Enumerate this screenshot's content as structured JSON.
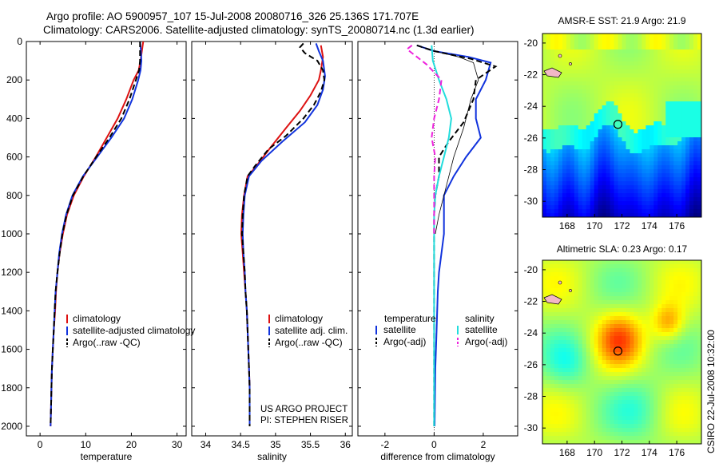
{
  "header": {
    "line1": "Argo profile: AO 5900957_107 15-Jul-2008 20080716_326 25.136S 171.707E",
    "line2": "Climatology: CARS2006. Satellite-adjusted climatology: synTS_20080714.nc (1.3d earlier)"
  },
  "footer_vertical": "CSIRO 22-Jul-2008 10:32:00",
  "colors": {
    "climatology": "#dd1111",
    "satellite": "#1133dd",
    "argo": "#000000",
    "salinity_satellite": "#22dddd",
    "salinity_argo": "#ee22dd"
  },
  "chart_data": [
    {
      "type": "line",
      "id": "temperature",
      "xlabel": "temperature",
      "ylabel": "",
      "xlim": [
        -3,
        32
      ],
      "ylim": [
        2050,
        0
      ],
      "xticks": [
        0,
        10,
        20,
        30
      ],
      "yticks": [
        0,
        200,
        400,
        600,
        800,
        1000,
        1200,
        1400,
        1600,
        1800,
        2000
      ],
      "legend": {
        "placement": "lower-right",
        "entries": [
          "climatology",
          "satellite-adjusted climatology",
          "Argo(..raw -QC)"
        ]
      },
      "series": [
        {
          "name": "climatology",
          "color": "#dd1111",
          "style": "solid",
          "points": [
            [
              22.6,
              0
            ],
            [
              22.3,
              50
            ],
            [
              22.0,
              100
            ],
            [
              21.6,
              150
            ],
            [
              20.5,
              200
            ],
            [
              18.9,
              300
            ],
            [
              17.0,
              400
            ],
            [
              14.6,
              500
            ],
            [
              12.2,
              600
            ],
            [
              9.6,
              700
            ],
            [
              7.4,
              800
            ],
            [
              5.9,
              900
            ],
            [
              5.0,
              1000
            ],
            [
              4.3,
              1100
            ],
            [
              3.8,
              1200
            ],
            [
              3.5,
              1300
            ],
            [
              3.3,
              1400
            ],
            [
              3.0,
              1500
            ],
            [
              2.8,
              1600
            ],
            [
              2.6,
              1700
            ],
            [
              2.5,
              1800
            ],
            [
              2.4,
              1900
            ],
            [
              2.3,
              2000
            ]
          ]
        },
        {
          "name": "satellite-adjusted climatology",
          "color": "#1133dd",
          "style": "solid",
          "points": [
            [
              21.9,
              0
            ],
            [
              22.1,
              50
            ],
            [
              22.2,
              100
            ],
            [
              22.0,
              150
            ],
            [
              21.5,
              200
            ],
            [
              20.2,
              300
            ],
            [
              18.4,
              400
            ],
            [
              15.6,
              500
            ],
            [
              12.5,
              600
            ],
            [
              9.4,
              700
            ],
            [
              7.1,
              800
            ],
            [
              5.7,
              900
            ],
            [
              4.8,
              1000
            ],
            [
              4.2,
              1100
            ],
            [
              3.8,
              1200
            ],
            [
              3.4,
              1300
            ],
            [
              3.2,
              1400
            ],
            [
              3.0,
              1500
            ],
            [
              2.8,
              1600
            ],
            [
              2.6,
              1700
            ],
            [
              2.5,
              1800
            ],
            [
              2.4,
              1900
            ],
            [
              2.3,
              2000
            ]
          ]
        },
        {
          "name": "Argo(..raw -QC)",
          "color": "#000000",
          "style": "dashed",
          "points": [
            [
              21.9,
              0
            ],
            [
              21.9,
              50
            ],
            [
              21.9,
              100
            ],
            [
              21.7,
              150
            ],
            [
              21.0,
              200
            ],
            [
              19.6,
              300
            ],
            [
              17.8,
              400
            ],
            [
              15.2,
              500
            ],
            [
              12.3,
              600
            ],
            [
              9.5,
              700
            ],
            [
              7.2,
              800
            ],
            [
              5.8,
              900
            ],
            [
              4.9,
              1000
            ],
            [
              4.3,
              1100
            ],
            [
              3.8,
              1200
            ],
            [
              3.4,
              1300
            ],
            [
              3.2,
              1400
            ],
            [
              3.0,
              1500
            ],
            [
              2.8,
              1600
            ],
            [
              2.6,
              1700
            ],
            [
              2.5,
              1800
            ],
            [
              2.4,
              1900
            ],
            [
              2.3,
              2000
            ]
          ]
        }
      ]
    },
    {
      "type": "line",
      "id": "salinity",
      "xlabel": "salinity",
      "ylabel": "",
      "xlim": [
        33.8,
        36.1
      ],
      "ylim": [
        2050,
        0
      ],
      "xticks": [
        34,
        34.5,
        35,
        35.5,
        36
      ],
      "yticks": [
        0,
        200,
        400,
        600,
        800,
        1000,
        1200,
        1400,
        1600,
        1800,
        2000
      ],
      "legend": {
        "placement": "lower-right",
        "entries": [
          "climatology",
          "satellite adj. clim.",
          "Argo(..raw -QC)"
        ]
      },
      "annotation": [
        "US ARGO PROJECT",
        "PI: STEPHEN RISER"
      ],
      "series": [
        {
          "name": "climatology",
          "color": "#dd1111",
          "style": "solid",
          "points": [
            [
              35.65,
              20
            ],
            [
              35.68,
              80
            ],
            [
              35.65,
              150
            ],
            [
              35.62,
              200
            ],
            [
              35.5,
              280
            ],
            [
              35.35,
              360
            ],
            [
              35.15,
              450
            ],
            [
              34.93,
              550
            ],
            [
              34.72,
              650
            ],
            [
              34.6,
              700
            ],
            [
              34.55,
              800
            ],
            [
              34.52,
              900
            ],
            [
              34.51,
              1000
            ],
            [
              34.53,
              1100
            ],
            [
              34.55,
              1200
            ],
            [
              34.57,
              1300
            ],
            [
              34.59,
              1400
            ],
            [
              34.6,
              1500
            ],
            [
              34.61,
              1600
            ],
            [
              34.62,
              1700
            ],
            [
              34.63,
              1800
            ],
            [
              34.63,
              1900
            ],
            [
              34.63,
              2000
            ]
          ]
        },
        {
          "name": "satellite adj. clim.",
          "color": "#1133dd",
          "style": "solid",
          "points": [
            [
              35.58,
              10
            ],
            [
              35.62,
              50
            ],
            [
              35.68,
              100
            ],
            [
              35.71,
              180
            ],
            [
              35.68,
              250
            ],
            [
              35.6,
              330
            ],
            [
              35.42,
              420
            ],
            [
              35.1,
              520
            ],
            [
              34.8,
              620
            ],
            [
              34.62,
              700
            ],
            [
              34.56,
              800
            ],
            [
              34.54,
              900
            ],
            [
              34.53,
              1000
            ],
            [
              34.54,
              1100
            ],
            [
              34.56,
              1200
            ],
            [
              34.57,
              1300
            ],
            [
              34.59,
              1400
            ],
            [
              34.6,
              1500
            ],
            [
              34.61,
              1600
            ],
            [
              34.62,
              1700
            ],
            [
              34.63,
              1800
            ],
            [
              34.63,
              1900
            ],
            [
              34.63,
              2000
            ]
          ]
        },
        {
          "name": "Argo(..raw -QC)",
          "color": "#000000",
          "style": "dashed",
          "points": [
            [
              35.4,
              10
            ],
            [
              35.35,
              30
            ],
            [
              35.42,
              60
            ],
            [
              35.6,
              100
            ],
            [
              35.68,
              150
            ],
            [
              35.7,
              200
            ],
            [
              35.65,
              260
            ],
            [
              35.55,
              330
            ],
            [
              35.4,
              400
            ],
            [
              35.15,
              490
            ],
            [
              34.9,
              560
            ],
            [
              34.7,
              650
            ],
            [
              34.6,
              700
            ],
            [
              34.55,
              800
            ],
            [
              34.53,
              900
            ],
            [
              34.52,
              1000
            ],
            [
              34.54,
              1100
            ],
            [
              34.56,
              1200
            ],
            [
              34.57,
              1300
            ],
            [
              34.59,
              1400
            ],
            [
              34.6,
              1500
            ],
            [
              34.61,
              1600
            ],
            [
              34.62,
              1700
            ],
            [
              34.63,
              1800
            ],
            [
              34.63,
              1900
            ],
            [
              34.63,
              2000
            ]
          ]
        }
      ]
    },
    {
      "type": "line",
      "id": "difference",
      "xlabel": "difference from climatology",
      "ylabel": "",
      "xlim": [
        -3.1,
        3.4
      ],
      "ylim": [
        2050,
        0
      ],
      "xticks": [
        -2,
        0,
        2
      ],
      "yticks": [
        0,
        200,
        400,
        600,
        800,
        1000,
        1200,
        1400,
        1600,
        1800,
        2000
      ],
      "legend": {
        "placement": "lower-right",
        "headers": [
          "temperature",
          "salinity"
        ],
        "entries": [
          "satellite",
          "Argo(-adj)",
          "satellite",
          "Argo(-adj)"
        ]
      },
      "series": [
        {
          "name": "temperature satellite",
          "color": "#1133dd",
          "style": "solid",
          "points": [
            [
              -0.7,
              20
            ],
            [
              0.0,
              50
            ],
            [
              1.4,
              80
            ],
            [
              2.3,
              110
            ],
            [
              2.1,
              200
            ],
            [
              1.7,
              300
            ],
            [
              1.7,
              400
            ],
            [
              1.9,
              500
            ],
            [
              1.3,
              600
            ],
            [
              0.8,
              700
            ],
            [
              0.4,
              800
            ],
            [
              0.4,
              900
            ],
            [
              0.4,
              1000
            ],
            [
              0.3,
              1100
            ],
            [
              0.2,
              1200
            ],
            [
              0.15,
              1300
            ],
            [
              0.1,
              1500
            ],
            [
              0.05,
              1700
            ],
            [
              0.03,
              1900
            ],
            [
              0.02,
              2000
            ]
          ]
        },
        {
          "name": "temperature thin",
          "color": "#000000",
          "style": "thin",
          "points": [
            [
              -0.7,
              20
            ],
            [
              0.0,
              50
            ],
            [
              1.0,
              80
            ],
            [
              1.6,
              110
            ],
            [
              1.8,
              200
            ],
            [
              1.5,
              300
            ],
            [
              1.2,
              450
            ],
            [
              0.8,
              600
            ],
            [
              0.5,
              750
            ],
            [
              0.2,
              900
            ],
            [
              0.05,
              1000
            ]
          ]
        },
        {
          "name": "temperature Argo(-adj)",
          "color": "#000000",
          "style": "dashed",
          "points": [
            [
              -0.7,
              20
            ],
            [
              0.0,
              50
            ],
            [
              1.5,
              90
            ],
            [
              2.5,
              130
            ],
            [
              1.7,
              200
            ],
            [
              1.6,
              300
            ],
            [
              1.2,
              420
            ],
            [
              0.6,
              520
            ],
            [
              0.2,
              600
            ],
            [
              0.2,
              700
            ],
            [
              0.05,
              800
            ],
            [
              0.0,
              900
            ],
            [
              0.0,
              1000
            ],
            [
              0.0,
              1200
            ],
            [
              0.0,
              1500
            ],
            [
              0.0,
              2000
            ]
          ]
        },
        {
          "name": "salinity satellite",
          "color": "#22dddd",
          "style": "solid",
          "points": [
            [
              -0.1,
              20
            ],
            [
              -0.05,
              100
            ],
            [
              0.2,
              200
            ],
            [
              0.5,
              300
            ],
            [
              0.7,
              400
            ],
            [
              0.6,
              500
            ],
            [
              0.4,
              600
            ],
            [
              0.2,
              700
            ],
            [
              0.05,
              800
            ],
            [
              0.0,
              900
            ],
            [
              0.0,
              1000
            ],
            [
              0.0,
              1200
            ],
            [
              0.0,
              1500
            ],
            [
              0.0,
              2000
            ]
          ]
        },
        {
          "name": "salinity Argo(-adj)",
          "color": "#ee22dd",
          "style": "dashed",
          "points": [
            [
              -0.9,
              20
            ],
            [
              -1.1,
              40
            ],
            [
              -0.9,
              60
            ],
            [
              -0.3,
              120
            ],
            [
              0.3,
              200
            ],
            [
              0.2,
              300
            ],
            [
              0.0,
              400
            ],
            [
              -0.1,
              500
            ],
            [
              0.05,
              600
            ],
            [
              0.0,
              700
            ],
            [
              0.0,
              800
            ],
            [
              0.0,
              1000
            ]
          ]
        }
      ]
    },
    {
      "type": "heatmap",
      "id": "sst_map",
      "title": "AMSR-E SST: 21.9 Argo: 21.9",
      "xlim": [
        166.2,
        177.8
      ],
      "ylim": [
        -31,
        -19.4
      ],
      "xticks": [
        168,
        170,
        172,
        174,
        176
      ],
      "yticks": [
        -20,
        -22,
        -24,
        -26,
        -28,
        -30
      ],
      "marker": {
        "lon": 171.707,
        "lat": -25.136
      },
      "colorscale": "jet"
    },
    {
      "type": "heatmap",
      "id": "sla_map",
      "title": "Altimetric SLA: 0.23 Argo: 0.17",
      "xlim": [
        166.2,
        177.8
      ],
      "ylim": [
        -31,
        -19.4
      ],
      "xticks": [
        168,
        170,
        172,
        174,
        176
      ],
      "yticks": [
        -20,
        -22,
        -24,
        -26,
        -28,
        -30
      ],
      "marker": {
        "lon": 171.707,
        "lat": -25.136
      },
      "colorscale": "jet"
    }
  ]
}
